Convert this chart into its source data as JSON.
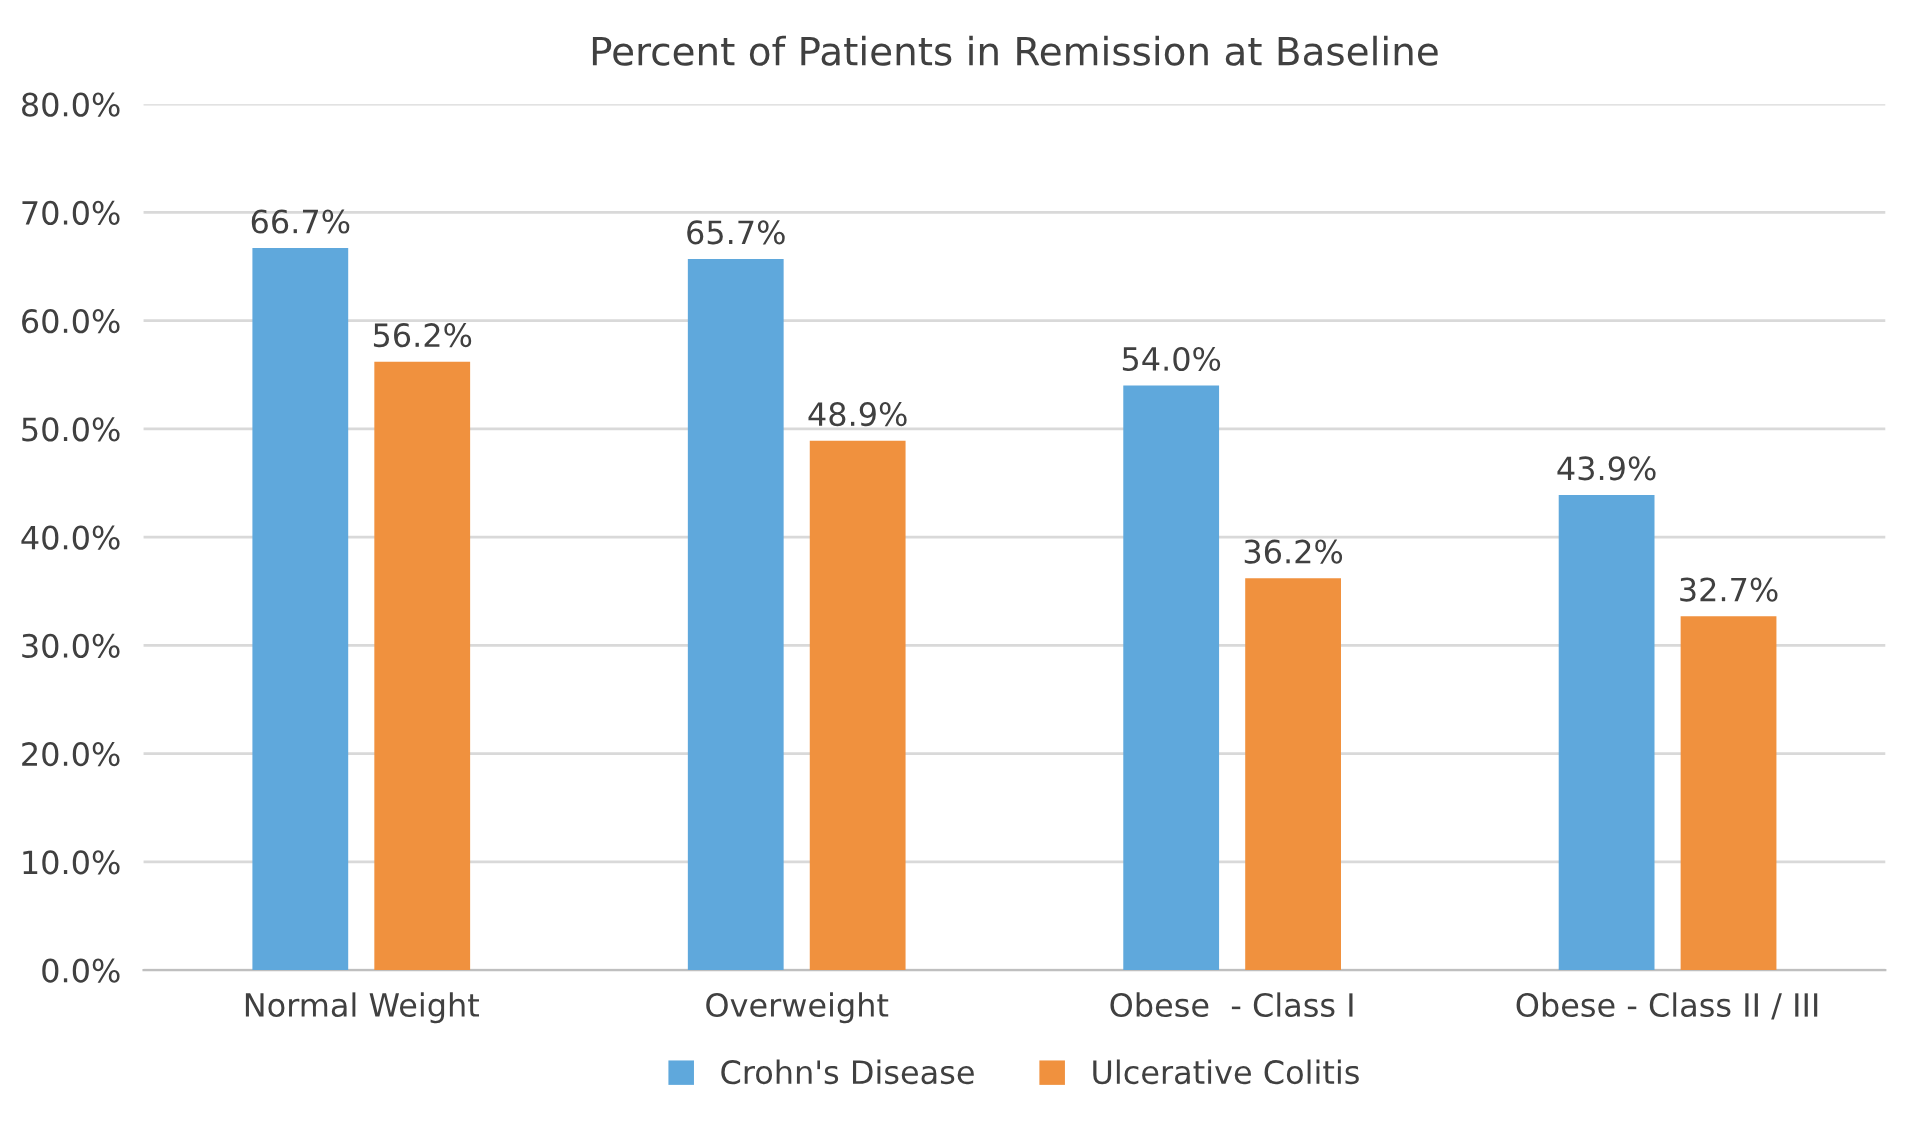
{
  "chart_data": {
    "type": "bar",
    "title": "Percent of Patients in Remission at Baseline",
    "categories": [
      "Normal Weight",
      "Overweight",
      "Obese  - Class I",
      "Obese - Class II / III"
    ],
    "series": [
      {
        "name": "Crohn's Disease",
        "color": "#5fa8dc",
        "values": [
          66.7,
          65.7,
          54.0,
          43.9
        ],
        "value_labels": [
          "66.7%",
          "65.7%",
          "54.0%",
          "43.9%"
        ]
      },
      {
        "name": "Ulcerative Colitis",
        "color": "#f0913e",
        "values": [
          56.2,
          48.9,
          36.2,
          32.7
        ],
        "value_labels": [
          "56.2%",
          "48.9%",
          "36.2%",
          "32.7%"
        ]
      }
    ],
    "ylim": [
      0,
      80
    ],
    "yticks": [
      {
        "value": 0,
        "label": "0.0%"
      },
      {
        "value": 10,
        "label": "10.0%"
      },
      {
        "value": 20,
        "label": "20.0%"
      },
      {
        "value": 30,
        "label": "30.0%"
      },
      {
        "value": 40,
        "label": "40.0%"
      },
      {
        "value": 50,
        "label": "50.0%"
      },
      {
        "value": 60,
        "label": "60.0%"
      },
      {
        "value": 70,
        "label": "70.0%"
      },
      {
        "value": 80,
        "label": "80.0%"
      }
    ],
    "grid": "y",
    "legend": "bottom"
  }
}
